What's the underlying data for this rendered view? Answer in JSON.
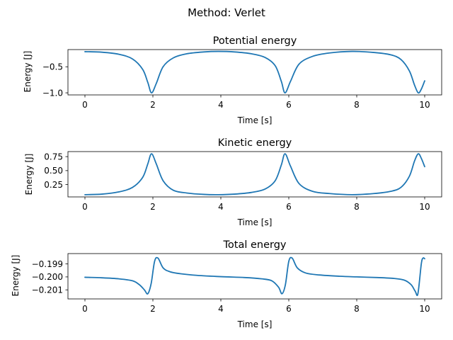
{
  "suptitle": "Method: Verlet",
  "chart_data": [
    {
      "type": "line",
      "title": "Potential energy",
      "xlabel": "Time [s]",
      "ylabel": "Energy [J]",
      "xlim": [
        -0.5,
        10.5
      ],
      "ylim": [
        -1.04,
        -0.17
      ],
      "xticks": [
        0,
        2,
        4,
        6,
        8,
        10
      ],
      "xtick_labels": [
        "0",
        "2",
        "4",
        "6",
        "8",
        "10"
      ],
      "yticks": [
        -0.5,
        -1.0
      ],
      "ytick_labels": [
        "−0.5",
        "−1.0"
      ],
      "grid": false,
      "series": [
        {
          "color": "#1f77b4",
          "x": [
            0,
            0.5,
            1.0,
            1.4,
            1.7,
            1.85,
            1.96,
            2.1,
            2.3,
            2.6,
            3.0,
            3.5,
            3.93,
            4.4,
            4.9,
            5.3,
            5.6,
            5.78,
            5.89,
            6.05,
            6.3,
            6.7,
            7.2,
            7.86,
            8.5,
            9.0,
            9.3,
            9.55,
            9.7,
            9.81,
            9.9,
            10.0
          ],
          "values": [
            -0.21,
            -0.22,
            -0.26,
            -0.35,
            -0.55,
            -0.8,
            -1.0,
            -0.82,
            -0.5,
            -0.33,
            -0.25,
            -0.215,
            -0.205,
            -0.215,
            -0.25,
            -0.32,
            -0.48,
            -0.78,
            -1.0,
            -0.78,
            -0.45,
            -0.3,
            -0.235,
            -0.205,
            -0.225,
            -0.27,
            -0.36,
            -0.58,
            -0.85,
            -1.0,
            -0.93,
            -0.77
          ]
        }
      ]
    },
    {
      "type": "line",
      "title": "Kinetic energy",
      "xlabel": "Time [s]",
      "ylabel": "Energy [J]",
      "xlim": [
        -0.5,
        10.5
      ],
      "ylim": [
        0.03,
        0.84
      ],
      "xticks": [
        0,
        2,
        4,
        6,
        8,
        10
      ],
      "xtick_labels": [
        "0",
        "2",
        "4",
        "6",
        "8",
        "10"
      ],
      "yticks": [
        0.25,
        0.5,
        0.75
      ],
      "ytick_labels": [
        "0.25",
        "0.50",
        "0.75"
      ],
      "grid": false,
      "series": [
        {
          "color": "#1f77b4",
          "x": [
            0,
            0.5,
            1.0,
            1.4,
            1.7,
            1.85,
            1.96,
            2.1,
            2.3,
            2.6,
            3.0,
            3.5,
            3.93,
            4.4,
            4.9,
            5.3,
            5.6,
            5.78,
            5.89,
            6.05,
            6.3,
            6.7,
            7.2,
            7.86,
            8.5,
            9.0,
            9.3,
            9.55,
            9.7,
            9.81,
            9.9,
            10.0
          ],
          "values": [
            0.07,
            0.08,
            0.12,
            0.2,
            0.38,
            0.62,
            0.8,
            0.62,
            0.32,
            0.15,
            0.1,
            0.075,
            0.07,
            0.08,
            0.11,
            0.17,
            0.32,
            0.6,
            0.8,
            0.58,
            0.27,
            0.13,
            0.09,
            0.07,
            0.09,
            0.13,
            0.2,
            0.4,
            0.67,
            0.8,
            0.72,
            0.57
          ]
        }
      ]
    },
    {
      "type": "line",
      "title": "Total energy",
      "xlabel": "Time [s]",
      "ylabel": "Energy [J]",
      "xlim": [
        -0.5,
        10.5
      ],
      "ylim": [
        -0.2017,
        -0.1982
      ],
      "xticks": [
        0,
        2,
        4,
        6,
        8,
        10
      ],
      "xtick_labels": [
        "0",
        "2",
        "4",
        "6",
        "8",
        "10"
      ],
      "yticks": [
        -0.199,
        -0.2,
        -0.201
      ],
      "ytick_labels": [
        "−0.199",
        "−0.200",
        "−0.201"
      ],
      "grid": false,
      "series": [
        {
          "color": "#1f77b4",
          "x": [
            0,
            0.5,
            1.0,
            1.4,
            1.6,
            1.75,
            1.85,
            1.95,
            2.05,
            2.15,
            2.3,
            2.5,
            2.8,
            3.3,
            4.0,
            4.7,
            5.2,
            5.5,
            5.7,
            5.8,
            5.9,
            6.0,
            6.1,
            6.25,
            6.5,
            6.9,
            7.5,
            8.0,
            8.6,
            9.1,
            9.4,
            9.6,
            9.72,
            9.8,
            9.9,
            9.95,
            10.0
          ],
          "values": [
            -0.20003,
            -0.20007,
            -0.20015,
            -0.2003,
            -0.2006,
            -0.201,
            -0.2013,
            -0.2005,
            -0.1988,
            -0.19855,
            -0.1993,
            -0.1996,
            -0.19975,
            -0.19988,
            -0.19998,
            -0.20005,
            -0.20015,
            -0.2003,
            -0.2008,
            -0.2013,
            -0.2006,
            -0.1988,
            -0.19855,
            -0.1993,
            -0.1997,
            -0.19985,
            -0.19995,
            -0.2,
            -0.20005,
            -0.20012,
            -0.20025,
            -0.2006,
            -0.2011,
            -0.2013,
            -0.199,
            -0.19855,
            -0.1986
          ]
        }
      ]
    }
  ]
}
